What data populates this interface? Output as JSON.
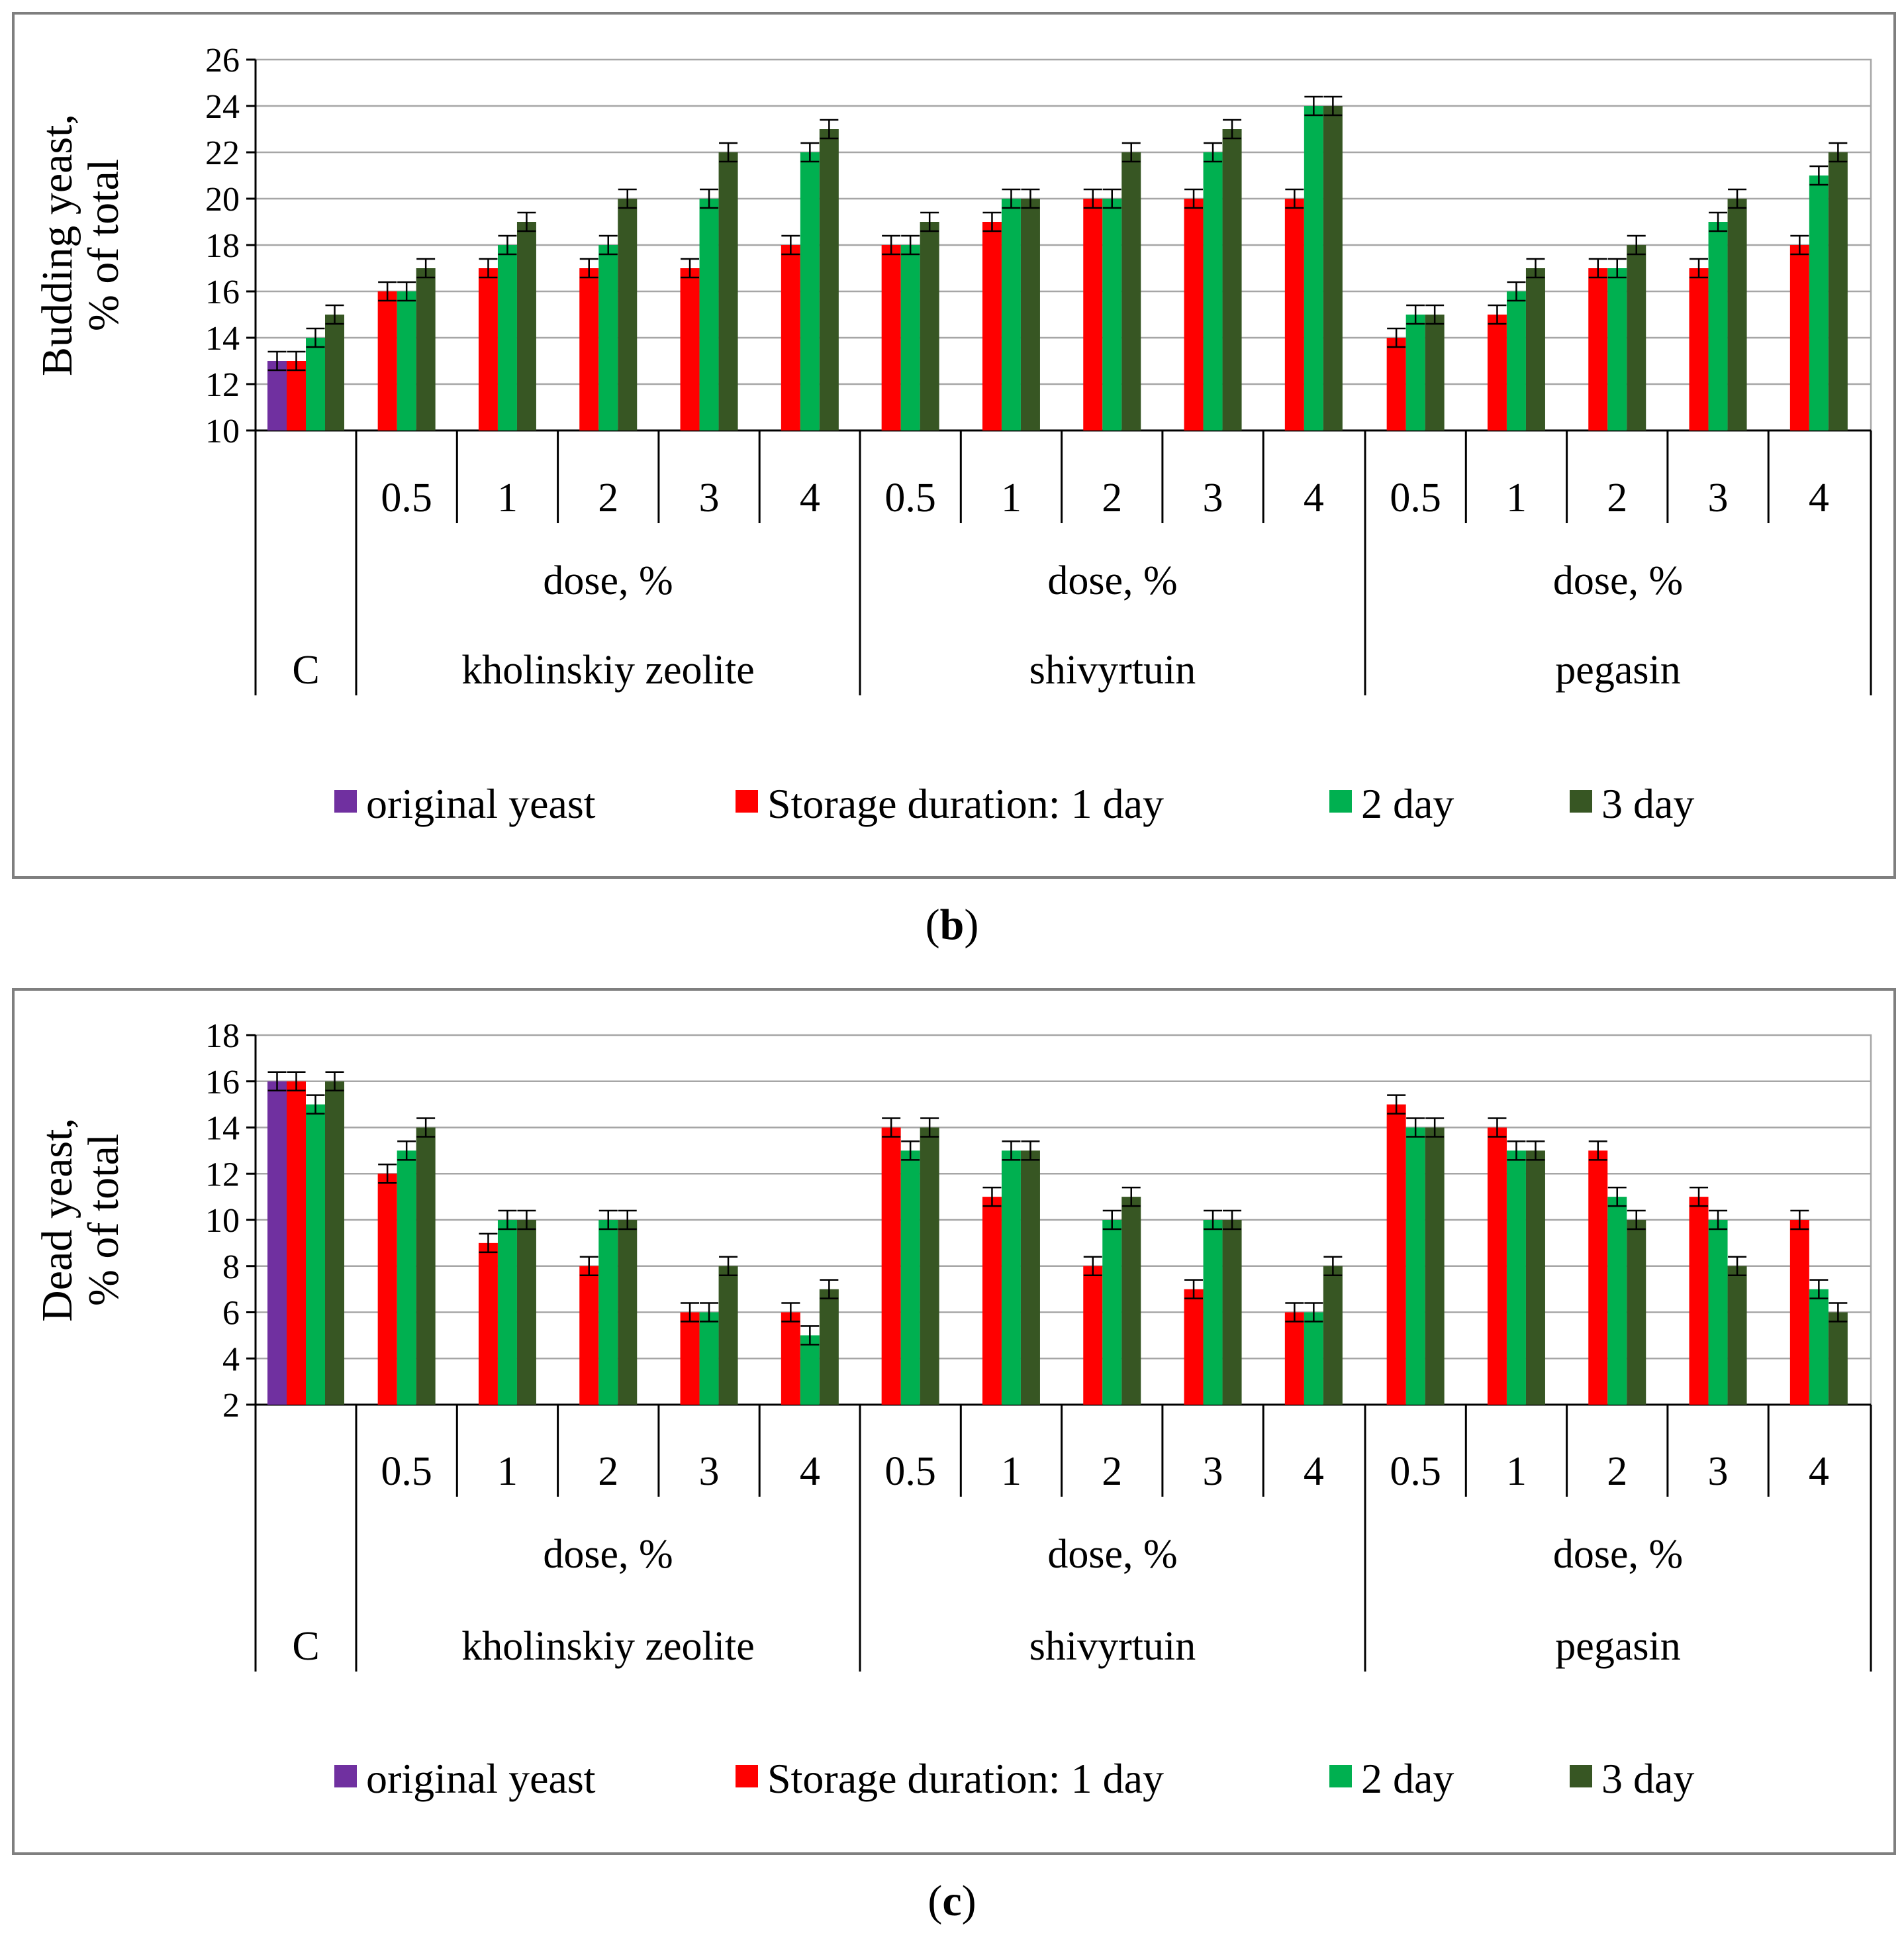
{
  "colors": {
    "original": "#7030A0",
    "day1": "#FF0000",
    "day2": "#00B050",
    "day3": "#375623",
    "grid": "#A6A6A6",
    "frame": "#7F7F7F",
    "axis": "#000000"
  },
  "legend": {
    "original": "original yeast",
    "day1": "Storage duration: 1 day",
    "day2": "2 day",
    "day3": "3 day"
  },
  "categories": {
    "control": "C",
    "dose_label": "dose, %",
    "groups": [
      {
        "name": "kholinskiy zeolite",
        "doses": [
          "0.5",
          "1",
          "2",
          "3",
          "4"
        ]
      },
      {
        "name": "shivyrtuin",
        "doses": [
          "0.5",
          "1",
          "2",
          "3",
          "4"
        ]
      },
      {
        "name": "pegasin",
        "doses": [
          "0.5",
          "1",
          "2",
          "3",
          "4"
        ]
      }
    ]
  },
  "chart_data": [
    {
      "type": "bar",
      "panel_label": "b",
      "ylabel_line1": "Budding yeast,",
      "ylabel_line2": "% of total",
      "ylim": [
        10,
        26
      ],
      "yticks": [
        "10",
        "12",
        "14",
        "16",
        "18",
        "20",
        "22",
        "24",
        "26"
      ],
      "control": {
        "original": 13,
        "day1": 13,
        "day2": 14,
        "day3": 15
      },
      "groups": [
        {
          "name": "kholinskiy zeolite",
          "day1": [
            16,
            17,
            17,
            17,
            18
          ],
          "day2": [
            16,
            18,
            18,
            20,
            22
          ],
          "day3": [
            17,
            19,
            20,
            22,
            23
          ]
        },
        {
          "name": "shivyrtuin",
          "day1": [
            18,
            19,
            20,
            20,
            20
          ],
          "day2": [
            18,
            20,
            20,
            22,
            24
          ],
          "day3": [
            19,
            20,
            22,
            23,
            24
          ]
        },
        {
          "name": "pegasin",
          "day1": [
            14,
            15,
            17,
            17,
            18
          ],
          "day2": [
            15,
            16,
            17,
            19,
            21
          ],
          "day3": [
            15,
            17,
            18,
            20,
            22
          ]
        }
      ]
    },
    {
      "type": "bar",
      "panel_label": "c",
      "ylabel_line1": "Dead yeast,",
      "ylabel_line2": "% of total",
      "ylim": [
        2,
        18
      ],
      "yticks": [
        "2",
        "4",
        "6",
        "8",
        "10",
        "12",
        "14",
        "16",
        "18"
      ],
      "control": {
        "original": 16,
        "day1": 16,
        "day2": 15,
        "day3": 16
      },
      "groups": [
        {
          "name": "kholinskiy zeolite",
          "day1": [
            12,
            9,
            8,
            6,
            6
          ],
          "day2": [
            13,
            10,
            10,
            6,
            5
          ],
          "day3": [
            14,
            10,
            10,
            8,
            7
          ]
        },
        {
          "name": "shivyrtuin",
          "day1": [
            14,
            11,
            8,
            7,
            6
          ],
          "day2": [
            13,
            13,
            10,
            10,
            6
          ],
          "day3": [
            14,
            13,
            11,
            10,
            8
          ]
        },
        {
          "name": "pegasin",
          "day1": [
            15,
            14,
            13,
            11,
            10
          ],
          "day2": [
            14,
            13,
            11,
            10,
            7
          ],
          "day3": [
            14,
            13,
            10,
            8,
            6
          ]
        }
      ]
    }
  ]
}
